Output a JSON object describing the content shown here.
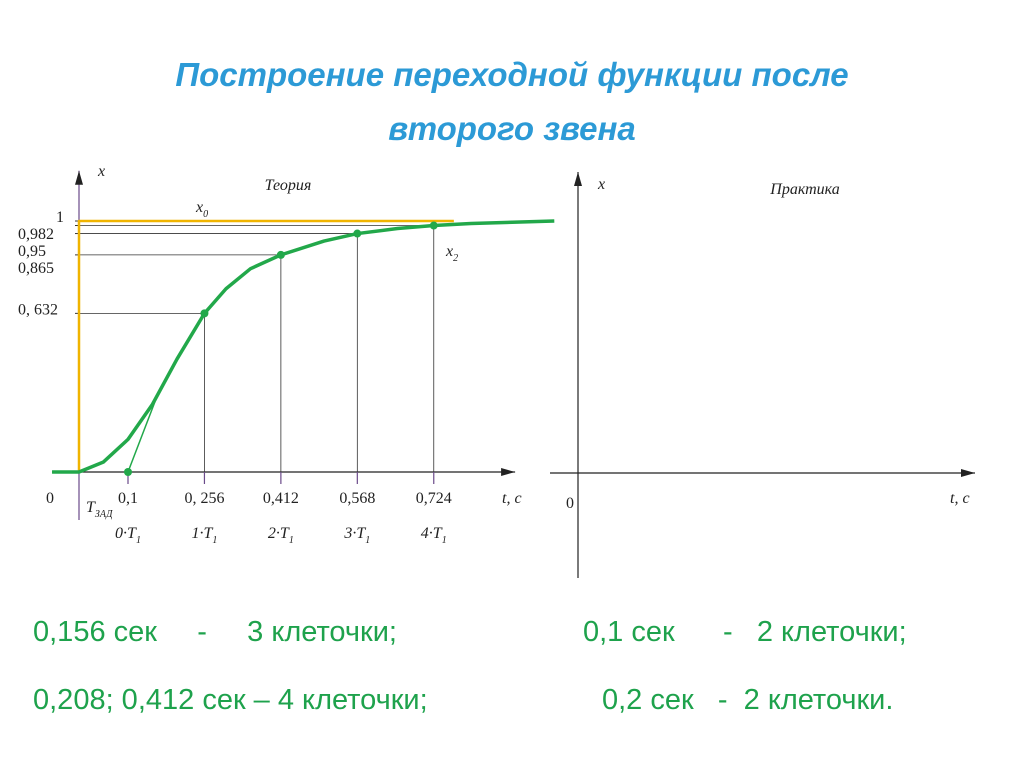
{
  "title": "Построение переходной функции после второго звена",
  "chart_data": [
    {
      "type": "line",
      "title": "Теория",
      "ylabel": "x",
      "xlabel": "t, c",
      "xlim": [
        0,
        0.89
      ],
      "ylim": [
        0,
        1.2
      ],
      "xticks": [
        0,
        {
          "value": 0.1,
          "label": "0,1"
        },
        {
          "value": 0.256,
          "label": "0, 256"
        },
        {
          "value": 0.412,
          "label": "0,412"
        },
        {
          "value": 0.568,
          "label": "0,568"
        },
        {
          "value": 0.724,
          "label": "0,724"
        }
      ],
      "xticks2": [
        null,
        {
          "base": "0·T",
          "sub": "1"
        },
        {
          "base": "1·T",
          "sub": "1"
        },
        {
          "base": "2·T",
          "sub": "1"
        },
        {
          "base": "3·T",
          "sub": "1"
        },
        {
          "base": "4·T",
          "sub": "1"
        }
      ],
      "yticks": [
        {
          "value": 0.632,
          "label": "0, 632"
        },
        {
          "value": 0.865,
          "label": "0,865"
        },
        {
          "value": 0.95,
          "label": "0,95"
        },
        {
          "value": 0.982,
          "label": "0,982"
        },
        1
      ],
      "delay_label": {
        "base": "T",
        "sub": "ЗАД"
      },
      "series": [
        {
          "name": "x",
          "subscript": "2",
          "color": "#22a84a",
          "x": [
            -0.055,
            0,
            0.05,
            0.1,
            0.15,
            0.2,
            0.256,
            0.3,
            0.35,
            0.412,
            0.5,
            0.568,
            0.65,
            0.724,
            0.8,
            0.97
          ],
          "values": [
            0,
            0,
            0.04,
            0.13,
            0.27,
            0.45,
            0.632,
            0.73,
            0.81,
            0.865,
            0.92,
            0.95,
            0.97,
            0.982,
            0.99,
            1
          ]
        },
        {
          "name": "x",
          "subscript": "0",
          "color": "#f0b400",
          "x": [
            0,
            0,
            0.765
          ],
          "values": [
            0,
            1,
            1
          ]
        }
      ],
      "tangent": {
        "color": "#22a84a",
        "x": [
          0.1,
          0.155
        ],
        "values": [
          0,
          0.28
        ]
      },
      "points": {
        "color": "#22a84a",
        "x": [
          0.1,
          0.256,
          0.412,
          0.568,
          0.724
        ],
        "values": [
          0,
          0.632,
          0.865,
          0.95,
          0.982
        ]
      }
    },
    {
      "type": "axes",
      "title": "Практика",
      "ylabel": "x",
      "xlabel": "t, c",
      "origin_label": "0"
    }
  ],
  "notes": [
    [
      "0,156 сек     -     3 клеточки;",
      "0,1 сек      -   2 клеточки;"
    ],
    [
      "0,208; 0,412 сек – 4 клеточки;",
      "0,2 сек   -  2 клеточки."
    ]
  ]
}
